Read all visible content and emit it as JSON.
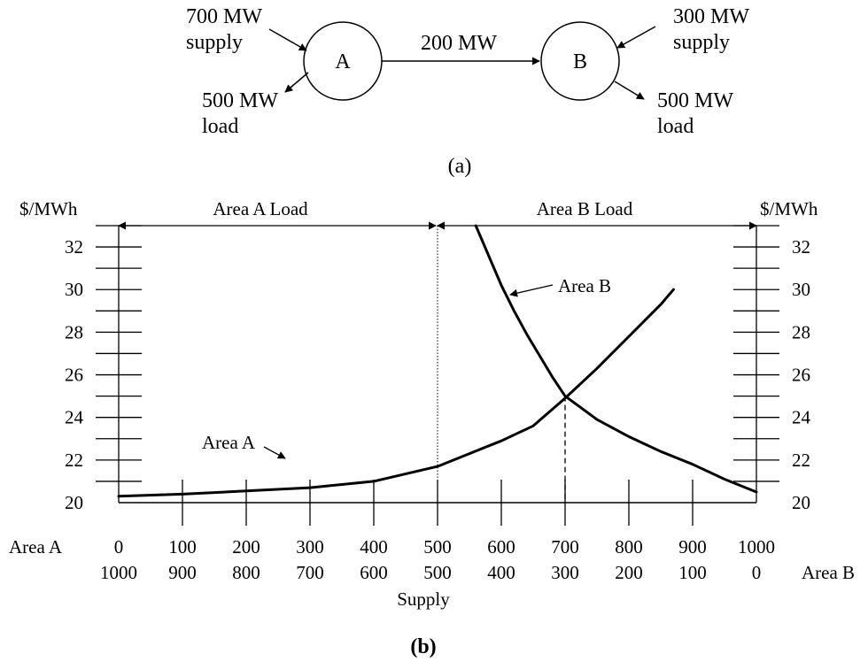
{
  "part_a": {
    "node_a": "A",
    "node_b": "B",
    "a_supply": [
      "700 MW",
      "supply"
    ],
    "a_load": [
      "500 MW",
      "load"
    ],
    "b_supply": [
      "300 MW",
      "supply"
    ],
    "b_load": [
      "500 MW",
      "load"
    ],
    "flow": "200 MW",
    "caption": "(a)"
  },
  "part_b": {
    "caption": "(b)",
    "unit_left": "$/MWh",
    "unit_right": "$/MWh",
    "span_left": "Area A Load",
    "span_right": "Area B Load",
    "row_a_label": "Area A",
    "row_b_label": "Area B",
    "supply_label": "Supply",
    "curve_a_label": "Area A",
    "curve_b_label": "Area B"
  },
  "chart_data": {
    "type": "line",
    "x_axis_area_a": [
      0,
      100,
      200,
      300,
      400,
      500,
      600,
      700,
      800,
      900,
      1000
    ],
    "x_axis_area_b": [
      1000,
      900,
      800,
      700,
      600,
      500,
      400,
      300,
      200,
      100,
      0
    ],
    "y_ticks": [
      20,
      22,
      24,
      26,
      28,
      30,
      32
    ],
    "ylim": [
      20,
      33
    ],
    "xlim": [
      0,
      1000
    ],
    "series": [
      {
        "name": "Area A",
        "x": [
          0,
          100,
          200,
          300,
          400,
          500,
          550,
          600,
          650,
          700,
          750,
          800,
          850,
          870
        ],
        "y": [
          20.3,
          20.4,
          20.55,
          20.7,
          21.0,
          21.7,
          22.3,
          22.9,
          23.6,
          24.9,
          26.3,
          27.8,
          29.3,
          30.0
        ]
      },
      {
        "name": "Area B",
        "x": [
          560,
          580,
          600,
          620,
          640,
          660,
          680,
          700,
          750,
          800,
          850,
          900,
          950,
          1000
        ],
        "y": [
          33.0,
          31.6,
          30.2,
          29.0,
          27.9,
          26.9,
          25.9,
          25.0,
          23.9,
          23.1,
          22.4,
          21.8,
          21.1,
          20.5
        ]
      }
    ],
    "boundary_x": 500,
    "equilibrium": {
      "x": 700,
      "y": 25
    }
  }
}
